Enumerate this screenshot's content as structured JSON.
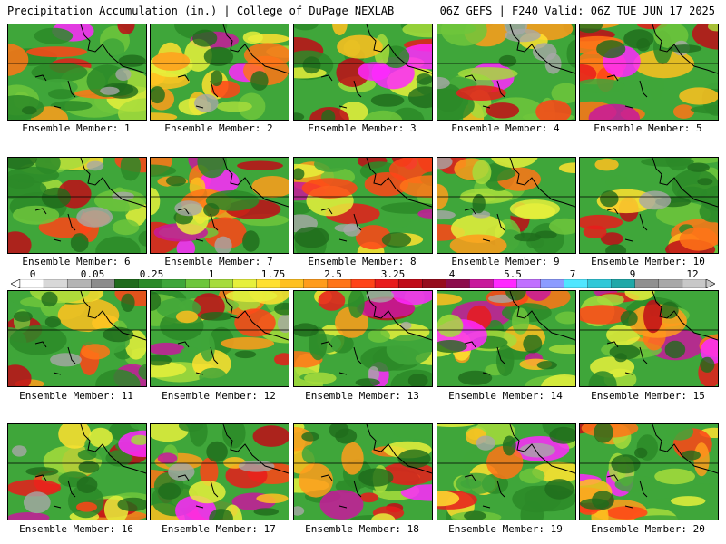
{
  "header": {
    "left": "Precipitation Accumulation (in.) | College of DuPage NEXLAB",
    "right": "06Z GEFS | F240 Valid: 06Z TUE JUN 17 2025"
  },
  "panels": [
    {
      "label": "Ensemble Member: 1"
    },
    {
      "label": "Ensemble Member: 2"
    },
    {
      "label": "Ensemble Member: 3"
    },
    {
      "label": "Ensemble Member: 4"
    },
    {
      "label": "Ensemble Member: 5"
    },
    {
      "label": "Ensemble Member: 6"
    },
    {
      "label": "Ensemble Member: 7"
    },
    {
      "label": "Ensemble Member: 8"
    },
    {
      "label": "Ensemble Member: 9"
    },
    {
      "label": "Ensemble Member: 10"
    },
    {
      "label": "Ensemble Member: 11"
    },
    {
      "label": "Ensemble Member: 12"
    },
    {
      "label": "Ensemble Member: 13"
    },
    {
      "label": "Ensemble Member: 14"
    },
    {
      "label": "Ensemble Member: 15"
    },
    {
      "label": "Ensemble Member: 16"
    },
    {
      "label": "Ensemble Member: 17"
    },
    {
      "label": "Ensemble Member: 18"
    },
    {
      "label": "Ensemble Member: 19"
    },
    {
      "label": "Ensemble Member: 20"
    }
  ],
  "colorbar": {
    "ticks": [
      "0",
      "0.05",
      "0.25",
      "1",
      "1.75",
      "2.5",
      "3.25",
      "4",
      "5.5",
      "7",
      "9",
      "12"
    ],
    "colors": [
      "#ffffff",
      "#d8d8d8",
      "#b4b4b4",
      "#8c8c8c",
      "#1f6b1c",
      "#2b8a28",
      "#3fa63a",
      "#6ec63c",
      "#a6dc3c",
      "#e6f03c",
      "#ffe030",
      "#ffc020",
      "#ff9c1c",
      "#ff7418",
      "#ff4418",
      "#e81c1c",
      "#c00c18",
      "#960c1c",
      "#8c0c4c",
      "#c8189c",
      "#ff28ff",
      "#c070ff",
      "#8c9cff",
      "#50e6ff",
      "#30c8d8",
      "#20a8a8",
      "#909090",
      "#a8a8a8",
      "#c8c8c8"
    ]
  }
}
